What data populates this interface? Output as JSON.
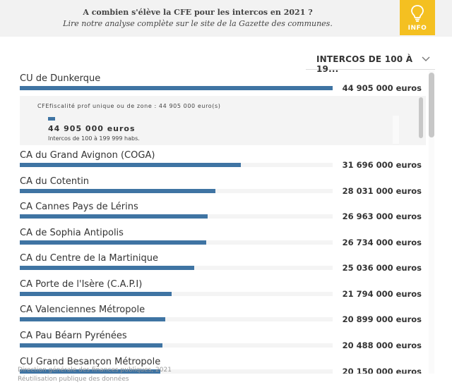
{
  "header": {
    "title": "A combien s'élève la CFE pour les intercos en 2021 ?",
    "subtitle": "Lire notre analyse complète sur le site de la Gazette des communes.",
    "info_label": "INFO",
    "info_icon": "lightbulb-icon"
  },
  "filter": {
    "selected": "INTERCOS DE 100 À 19...",
    "icon": "chevron-down-icon"
  },
  "tooltip": {
    "line1": "CFEfiscalité prof unique ou de zone : 44 905 000 euro(s)",
    "value": "44 905 000 euros",
    "group": "Intercos de 100 à 199 999 habs."
  },
  "chart_data": {
    "type": "bar",
    "orientation": "horizontal",
    "unit": "euros",
    "max": 44905000,
    "categories": [
      "CU de Dunkerque",
      "CA du Grand Avignon (COGA)",
      "CA du Cotentin",
      "CA Cannes Pays de Lérins",
      "CA de Sophia Antipolis",
      "CA du Centre de la Martinique",
      "CA Porte de l'Isère (C.A.P.I)",
      "CA Valenciennes Métropole",
      "CA Pau Béarn Pyrénées",
      "CU Grand Besançon Métropole"
    ],
    "values": [
      44905000,
      31696000,
      28031000,
      26963000,
      26734000,
      25036000,
      21794000,
      20899000,
      20488000,
      20150000
    ],
    "value_labels": [
      "44 905 000 euros",
      "31 696 000 euros",
      "28 031 000 euros",
      "26 963 000 euros",
      "26 734 000 euros",
      "25 036 000 euros",
      "21 794 000 euros",
      "20 899 000 euros",
      "20 488 000 euros",
      "20 150 000 euros"
    ],
    "bar_color": "#3f74a3",
    "track_color": "#f4f4f4"
  },
  "footer": {
    "source": "Direction générale des finances publiques, 2021",
    "license": "Réutilisation publique des données"
  }
}
